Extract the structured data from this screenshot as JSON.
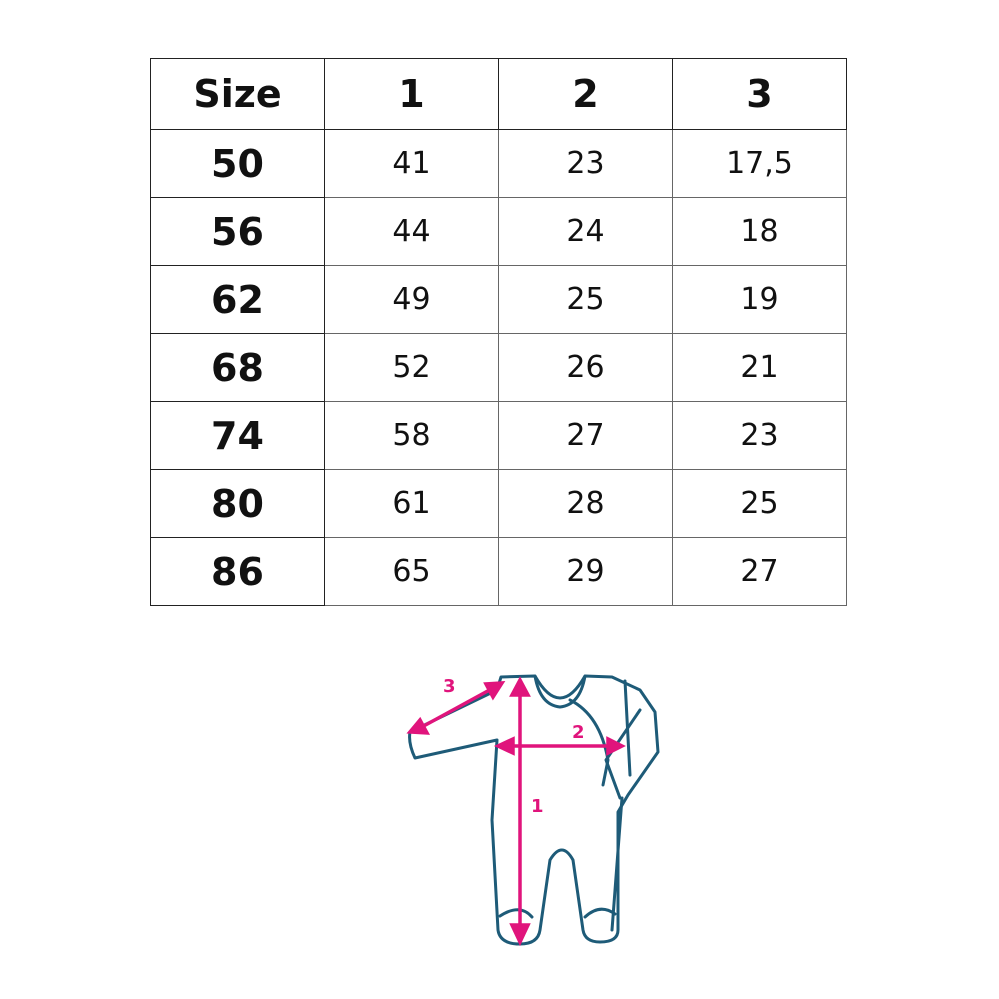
{
  "table": {
    "headers": [
      "Size",
      "1",
      "2",
      "3"
    ],
    "rows": [
      [
        "50",
        "41",
        "23",
        "17,5"
      ],
      [
        "56",
        "44",
        "24",
        "18"
      ],
      [
        "62",
        "49",
        "25",
        "19"
      ],
      [
        "68",
        "52",
        "26",
        "21"
      ],
      [
        "74",
        "58",
        "27",
        "23"
      ],
      [
        "80",
        "61",
        "28",
        "25"
      ],
      [
        "86",
        "65",
        "29",
        "27"
      ]
    ]
  },
  "diagram": {
    "labels": [
      "1",
      "2",
      "3"
    ],
    "colors": {
      "outline": "#1e5b78",
      "measure": "#e0147c"
    }
  }
}
